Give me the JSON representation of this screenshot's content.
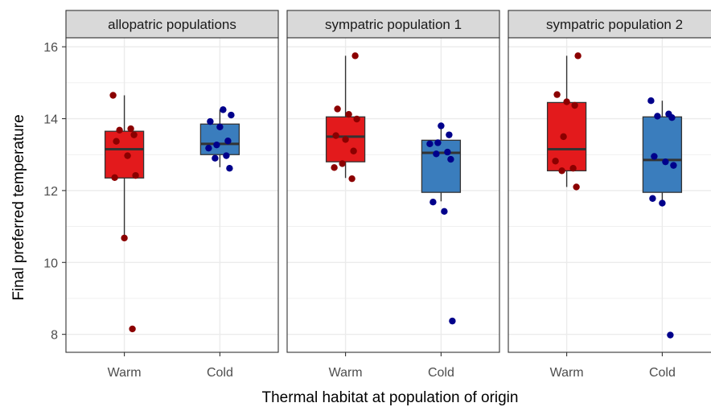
{
  "chart_data": {
    "type": "box",
    "xlabel": "Thermal habitat at population of origin",
    "ylabel": "Final preferred temperature",
    "ylim": [
      7.5,
      16.25
    ],
    "yticks": [
      "8",
      "10",
      "12",
      "14",
      "16"
    ],
    "categories": [
      "Warm",
      "Cold"
    ],
    "colors": {
      "warm_box": "#e31a1c",
      "cold_box": "#3a7dbd",
      "warm_point": "#8b0000",
      "cold_point": "#00008b",
      "strip_bg": "#d9d9d9",
      "grid": "#ebebeb"
    },
    "panels": [
      {
        "title": "allopatric populations",
        "groups": [
          {
            "category": "Warm",
            "q1": 12.35,
            "median": 13.15,
            "q3": 13.65,
            "whisker_low": 10.7,
            "whisker_high": 14.65,
            "points": [
              14.65,
              13.72,
              13.68,
              13.55,
              13.37,
              12.97,
              12.42,
              12.36,
              10.68,
              8.15
            ]
          },
          {
            "category": "Cold",
            "q1": 13.0,
            "median": 13.3,
            "q3": 13.85,
            "whisker_low": 12.65,
            "whisker_high": 14.25,
            "points": [
              14.25,
              14.1,
              13.92,
              13.77,
              13.38,
              13.27,
              13.18,
              12.97,
              12.9,
              12.62
            ]
          }
        ]
      },
      {
        "title": "sympatric population 1",
        "groups": [
          {
            "category": "Warm",
            "q1": 12.8,
            "median": 13.5,
            "q3": 14.05,
            "whisker_low": 12.35,
            "whisker_high": 15.75,
            "points": [
              15.75,
              14.27,
              14.12,
              13.99,
              13.53,
              13.42,
              13.1,
              12.75,
              12.64,
              12.33
            ]
          },
          {
            "category": "Cold",
            "q1": 11.95,
            "median": 13.05,
            "q3": 13.4,
            "whisker_low": 11.7,
            "whisker_high": 13.8,
            "points": [
              13.8,
              13.55,
              13.33,
              13.3,
              13.07,
              13.02,
              12.87,
              11.68,
              11.42,
              8.37
            ]
          }
        ]
      },
      {
        "title": "sympatric population 2",
        "groups": [
          {
            "category": "Warm",
            "q1": 12.55,
            "median": 13.15,
            "q3": 14.45,
            "whisker_low": 12.1,
            "whisker_high": 15.75,
            "points": [
              15.75,
              14.67,
              14.47,
              14.37,
              13.5,
              12.82,
              12.62,
              12.55,
              12.1
            ]
          },
          {
            "category": "Cold",
            "q1": 11.95,
            "median": 12.85,
            "q3": 14.05,
            "whisker_low": 11.65,
            "whisker_high": 14.5,
            "points": [
              14.5,
              14.13,
              14.07,
              14.03,
              12.95,
              12.8,
              12.7,
              11.78,
              11.65,
              7.98
            ]
          }
        ]
      }
    ]
  }
}
